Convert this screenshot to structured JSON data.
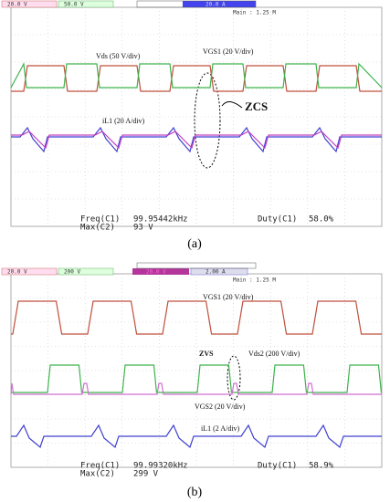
{
  "panels": [
    {
      "channels": [
        "20.0 V",
        "50.0 V",
        "20.0 A"
      ],
      "timebase": "Main : 1.25 M",
      "annotations": [
        "Vds (50 V/div)",
        "VGS1 (20 V/div)",
        "ZCS",
        "iL1 (20 A/div)"
      ],
      "measurements": [
        "Freq(C1)",
        "99.95442kHz",
        "Duty(C1)",
        "58.0%",
        "Max(C2)",
        "93 V"
      ],
      "caption": "(a)"
    },
    {
      "channels": [
        "20.0 V",
        "200 V",
        "20.0 V",
        "2.00 A"
      ],
      "timebase": "Main : 1.25 M",
      "annotations": [
        "VGS1 (20 V/div)",
        "ZVS",
        "Vds2 (200 V/div)",
        "VGS2 (20 V/div)",
        "iL1 (2 A/div)"
      ],
      "measurements": [
        "Freq(C1)",
        "99.99320kHz",
        "Duty(C1)",
        "58.9%",
        "Max(C2)",
        "299 V"
      ],
      "caption": "(b)"
    }
  ]
}
